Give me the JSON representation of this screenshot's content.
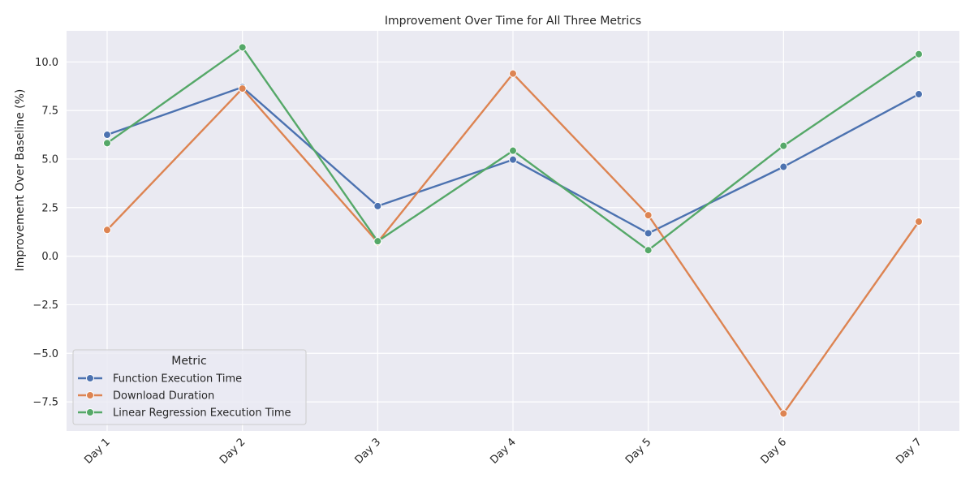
{
  "chart_data": {
    "type": "line",
    "title": "Improvement Over Time for All Three Metrics",
    "xlabel": "",
    "ylabel": "Improvement Over Baseline (%)",
    "categories": [
      "Day 1",
      "Day 2",
      "Day 3",
      "Day 4",
      "Day 5",
      "Day 6",
      "Day 7"
    ],
    "ylim": [
      -9.0,
      11.6
    ],
    "yticks": [
      -7.5,
      -5.0,
      -2.5,
      0.0,
      2.5,
      5.0,
      7.5,
      10.0
    ],
    "ytick_labels": [
      "−7.5",
      "−5.0",
      "−2.5",
      "0.0",
      "2.5",
      "5.0",
      "7.5",
      "10.0"
    ],
    "grid": true,
    "legend": {
      "title": "Metric",
      "position": "lower-left"
    },
    "series": [
      {
        "name": "Function Execution Time",
        "color": "#4c72b0",
        "values": [
          6.25,
          8.7,
          2.58,
          4.97,
          1.18,
          4.6,
          8.34
        ]
      },
      {
        "name": "Download Duration",
        "color": "#dd8452",
        "values": [
          1.35,
          8.63,
          0.72,
          9.4,
          2.11,
          -8.1,
          1.78
        ]
      },
      {
        "name": "Linear Regression Execution Time",
        "color": "#55a868",
        "values": [
          5.82,
          10.75,
          0.77,
          5.43,
          0.31,
          5.68,
          10.4
        ]
      }
    ]
  }
}
